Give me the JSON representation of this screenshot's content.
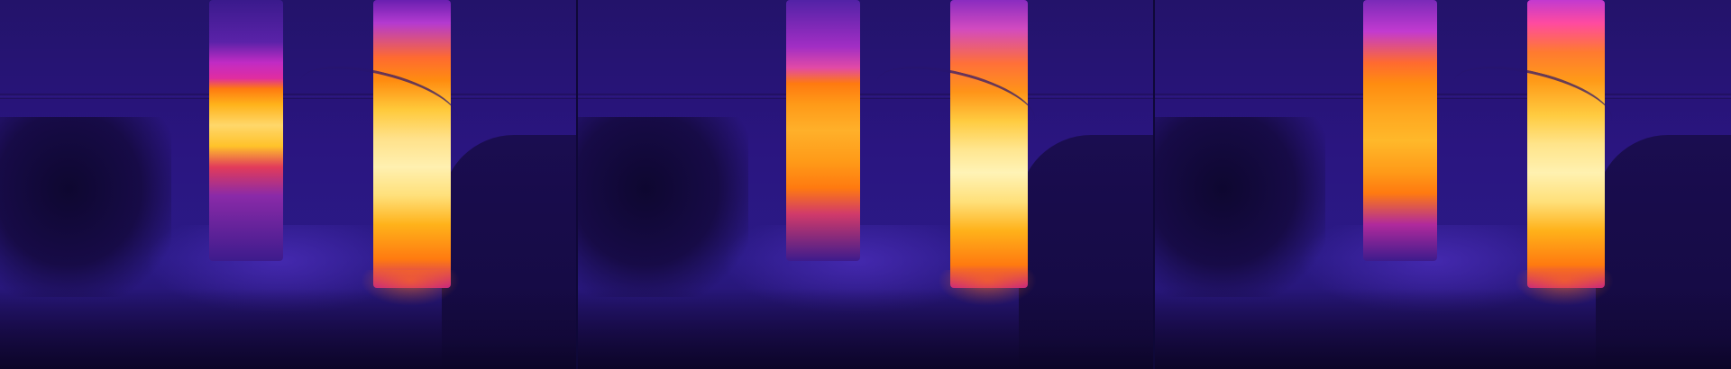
{
  "image": {
    "kind": "thermal-image-sequence",
    "frames": [
      {
        "frame_label": ""
      },
      {
        "frame_label": ""
      },
      {
        "frame_label": ""
      }
    ],
    "colors": {
      "background": "#2a1580",
      "hot": "#fff0b0",
      "warm": "#ffb21a",
      "mid": "#e02da0"
    }
  }
}
